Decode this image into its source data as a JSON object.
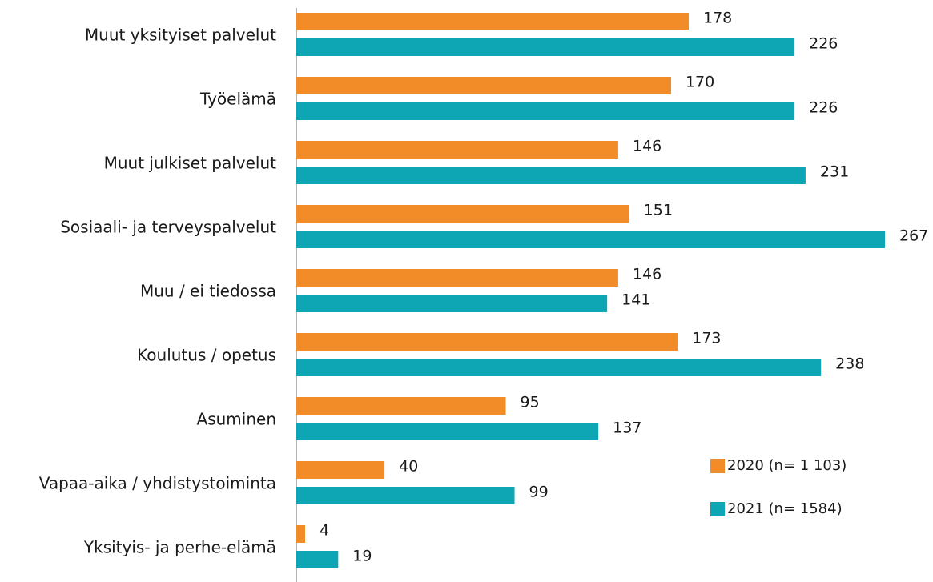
{
  "chart_data": {
    "type": "bar",
    "orientation": "horizontal",
    "categories": [
      "Muut yksityiset palvelut",
      "Työelämä",
      "Muut julkiset palvelut",
      "Sosiaali- ja terveyspalvelut",
      "Muu / ei tiedossa",
      "Koulutus / opetus",
      "Asuminen",
      "Vapaa-aika / yhdistystoiminta",
      "Yksityis- ja perhe-elämä"
    ],
    "series": [
      {
        "name": "2020 (n= 1 103)",
        "color": "#f28c28",
        "values": [
          178,
          170,
          146,
          151,
          146,
          173,
          95,
          40,
          4
        ]
      },
      {
        "name": "2021 (n= 1584)",
        "color": "#0ea5b5",
        "values": [
          226,
          226,
          231,
          267,
          141,
          238,
          137,
          99,
          19
        ]
      }
    ]
  }
}
